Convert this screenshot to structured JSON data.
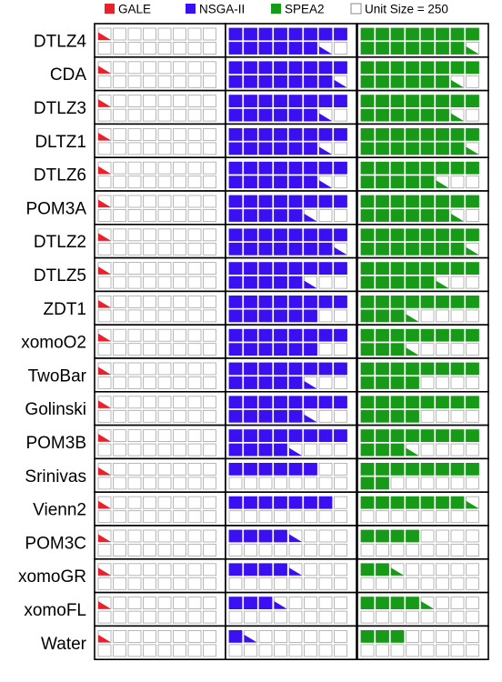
{
  "colors": {
    "gale": "#e8212b",
    "nsga": "#3b10f0",
    "spea": "#179a17",
    "empty_stroke": "#a6a6a6",
    "border": "#000000"
  },
  "chart_data": {
    "type": "waffle",
    "unit_size": 250,
    "legend": {
      "placement": "top",
      "items": [
        {
          "key": "gale",
          "label": "GALE",
          "color": "#e8212b"
        },
        {
          "key": "nsga",
          "label": "NSGA-II",
          "color": "#3b10f0"
        },
        {
          "key": "spea",
          "label": "SPEA2",
          "color": "#179a17"
        },
        {
          "key": "unit",
          "label": "Unit Size = 250",
          "color": "#ffffff"
        }
      ]
    },
    "grid": {
      "cols": 8,
      "rows": 2,
      "max_units": 16
    },
    "series_keys": [
      "gale",
      "nsga",
      "spea"
    ],
    "rows": [
      {
        "name": "DTLZ4",
        "gale": 0.5,
        "nsga": 14.5,
        "spea": 15.5
      },
      {
        "name": "CDA",
        "gale": 0.5,
        "nsga": 15.5,
        "spea": 14.5
      },
      {
        "name": "DTLZ3",
        "gale": 0.5,
        "nsga": 14.5,
        "spea": 14.5
      },
      {
        "name": "DLTZ1",
        "gale": 0.5,
        "nsga": 14.5,
        "spea": 15.5
      },
      {
        "name": "DTLZ6",
        "gale": 0.5,
        "nsga": 14.5,
        "spea": 13.5
      },
      {
        "name": "POM3A",
        "gale": 0.5,
        "nsga": 13.5,
        "spea": 14.5
      },
      {
        "name": "DTLZ2",
        "gale": 0.5,
        "nsga": 15.5,
        "spea": 15.5
      },
      {
        "name": "DTLZ5",
        "gale": 0.5,
        "nsga": 13.5,
        "spea": 13.5
      },
      {
        "name": "ZDT1",
        "gale": 0.5,
        "nsga": 14.0,
        "spea": 11.5
      },
      {
        "name": "xomoO2",
        "gale": 0.5,
        "nsga": 14.0,
        "spea": 11.5
      },
      {
        "name": "TwoBar",
        "gale": 0.5,
        "nsga": 13.5,
        "spea": 12.0
      },
      {
        "name": "Golinski",
        "gale": 0.5,
        "nsga": 13.5,
        "spea": 12.0
      },
      {
        "name": "POM3B",
        "gale": 0.5,
        "nsga": 12.5,
        "spea": 11.5
      },
      {
        "name": "Srinivas",
        "gale": 0.5,
        "nsga": 6.0,
        "spea": 10.0
      },
      {
        "name": "Vienn2",
        "gale": 0.5,
        "nsga": 7.0,
        "spea": 7.5
      },
      {
        "name": "POM3C",
        "gale": 0.5,
        "nsga": 4.5,
        "spea": 4.0
      },
      {
        "name": "xomoGR",
        "gale": 0.5,
        "nsga": 4.5,
        "spea": 2.5
      },
      {
        "name": "xomoFL",
        "gale": 0.5,
        "nsga": 3.5,
        "spea": 4.5
      },
      {
        "name": "Water",
        "gale": 0.5,
        "nsga": 1.5,
        "spea": 3.0
      }
    ]
  }
}
